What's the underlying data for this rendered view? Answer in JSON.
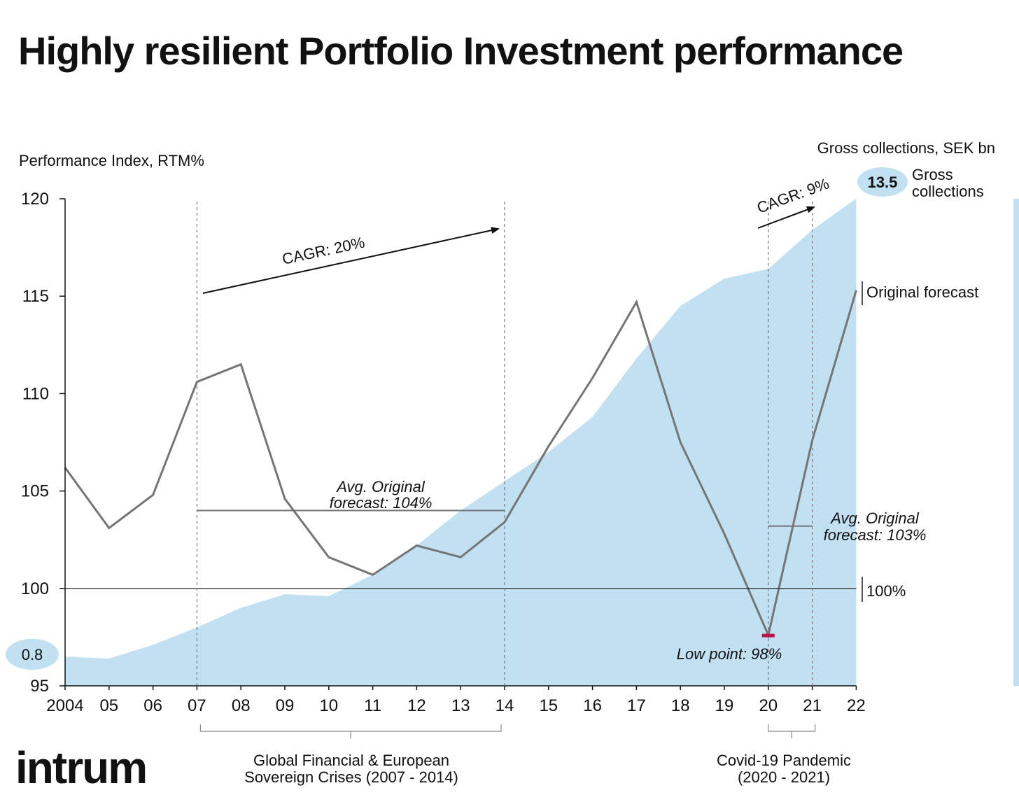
{
  "title": "Highly resilient Portfolio Investment performance",
  "brand": "intrum",
  "colors": {
    "area_fill": "#c1e0f2",
    "line": "#757575",
    "low_marker": "#c0124a",
    "bubble": "#c1e0f2"
  },
  "chart_data": {
    "type": "line",
    "y_axis_title": "Performance Index, RTM%",
    "secondary_axis_title": "Gross collections, SEK bn",
    "ylim": [
      95,
      120
    ],
    "yticks": [
      95,
      100,
      105,
      110,
      115,
      120
    ],
    "categories": [
      "2004",
      "05",
      "06",
      "07",
      "08",
      "09",
      "10",
      "11",
      "12",
      "13",
      "14",
      "15",
      "16",
      "17",
      "18",
      "19",
      "20",
      "21",
      "22"
    ],
    "series": [
      {
        "name": "Performance Index, RTM%",
        "kind": "line",
        "values": [
          106.2,
          103.1,
          104.8,
          110.6,
          111.5,
          104.6,
          101.6,
          100.7,
          102.2,
          101.6,
          103.4,
          107.3,
          110.8,
          114.7,
          107.5,
          102.8,
          97.6,
          107.6,
          115.3
        ]
      },
      {
        "name": "Gross collections",
        "kind": "area",
        "values": [
          96.5,
          96.4,
          97.1,
          98.0,
          99.0,
          99.7,
          99.6,
          100.7,
          102.2,
          104.0,
          105.5,
          107.0,
          108.8,
          111.8,
          114.5,
          115.9,
          116.4,
          118.4,
          120
        ]
      }
    ],
    "reference_line": {
      "value": 100,
      "label": "100%"
    },
    "end_labels": {
      "line": "Original forecast",
      "bubble_value": "13.5",
      "bubble_label_1": "Gross",
      "bubble_label_2": "collections"
    },
    "start_bubble": "0.8",
    "avg_lines": [
      {
        "from": "07",
        "to": "14",
        "value": 104,
        "label_1": "Avg. Original",
        "label_2": "forecast: 104%"
      },
      {
        "from": "20",
        "to": "21",
        "value": 103.2,
        "label_1": "Avg. Original",
        "label_2": "forecast: 103%"
      }
    ],
    "cagr": [
      {
        "label": "CAGR: 20%"
      },
      {
        "label": "CAGR: 9%"
      }
    ],
    "low_point": {
      "category": "20",
      "value": 97.6,
      "label": "Low point: 98%"
    },
    "periods": [
      {
        "from": "07",
        "to": "14",
        "label_1": "Global Financial & European",
        "label_2": "Sovereign Crises (2007 - 2014)"
      },
      {
        "from": "20",
        "to": "21",
        "label_1": "Covid-19 Pandemic",
        "label_2": "(2020 - 2021)"
      }
    ],
    "grid": false
  }
}
